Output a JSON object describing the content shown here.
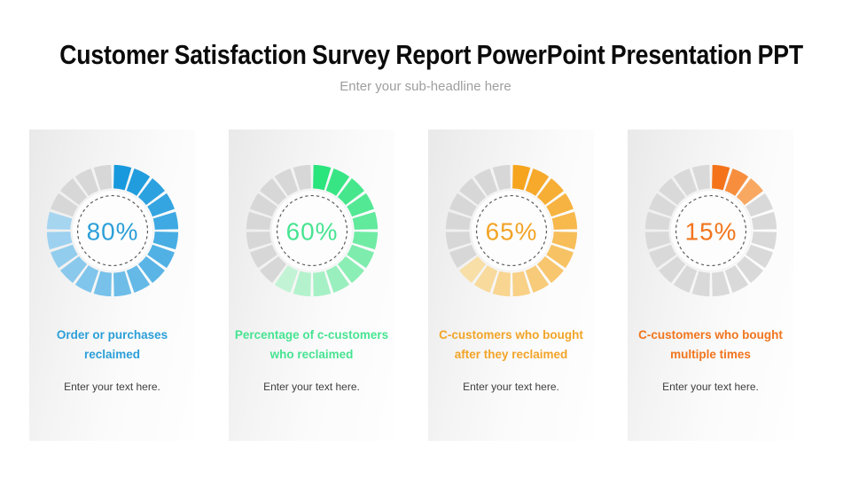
{
  "header": {
    "title": "Customer Satisfaction Survey Report PowerPoint Presentation PPT",
    "subheadline": "Enter your sub-headline here"
  },
  "chart_data": [
    {
      "type": "pie",
      "variant": "segmented-donut",
      "percent": 80,
      "center_label": "80%",
      "segments_total": 20,
      "segments_filled": 16,
      "start_angle_deg": 0,
      "direction": "clockwise",
      "title_lines": [
        "Order or purchases",
        "reclaimed"
      ],
      "body": "Enter your text here.",
      "colors": {
        "fill_start": "#1899dd",
        "fill_end": "#a6d5f0",
        "unfilled": "#d7d7d7",
        "accent": "#2b9fd8",
        "dash_ring": "#565656",
        "center_fill": "#fdfdfd"
      }
    },
    {
      "type": "pie",
      "variant": "segmented-donut",
      "percent": 60,
      "center_label": "60%",
      "segments_total": 20,
      "segments_filled": 12,
      "start_angle_deg": 0,
      "direction": "clockwise",
      "title_lines": [
        "Percentage of c-customers",
        "who reclaimed"
      ],
      "body": "Enter your text here.",
      "colors": {
        "fill_start": "#2ae47c",
        "fill_end": "#c2f3d5",
        "unfilled": "#d7d7d7",
        "accent": "#47e492",
        "dash_ring": "#565656",
        "center_fill": "#fdfdfd"
      }
    },
    {
      "type": "pie",
      "variant": "segmented-donut",
      "percent": 65,
      "center_label": "65%",
      "segments_total": 20,
      "segments_filled": 13,
      "start_angle_deg": 0,
      "direction": "clockwise",
      "title_lines": [
        "C-customers who bought",
        "after they reclaimed"
      ],
      "body": "Enter your text here.",
      "colors": {
        "fill_start": "#f6a41e",
        "fill_end": "#f8dfa8",
        "unfilled": "#d7d7d7",
        "accent": "#f2a427",
        "dash_ring": "#565656",
        "center_fill": "#fdfdfd"
      }
    },
    {
      "type": "pie",
      "variant": "segmented-donut",
      "percent": 15,
      "center_label": "15%",
      "segments_total": 20,
      "segments_filled": 3,
      "start_angle_deg": 0,
      "direction": "clockwise",
      "title_lines": [
        "C-customers who bought",
        "multiple times"
      ],
      "body": "Enter your text here.",
      "colors": {
        "fill_start": "#f4731a",
        "fill_end": "#f9a862",
        "unfilled": "#d9d9d9",
        "accent": "#f1751d",
        "dash_ring": "#565656",
        "center_fill": "#fdfdfd"
      }
    }
  ]
}
